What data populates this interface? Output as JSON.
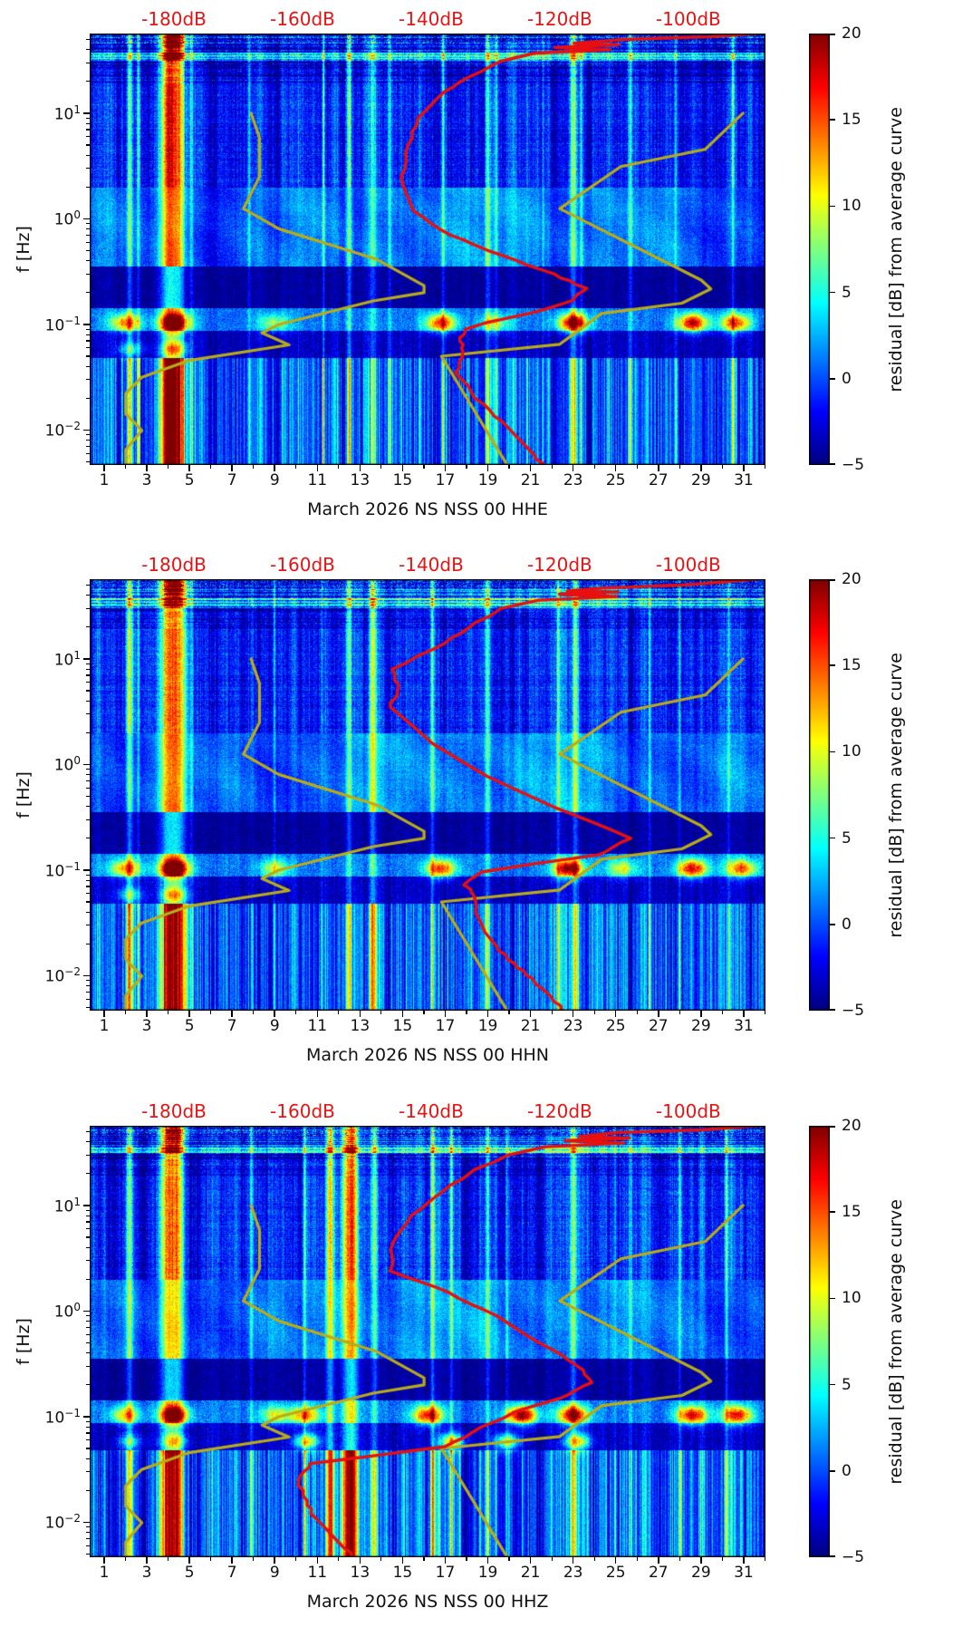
{
  "chart_data": {
    "type": "heatmap",
    "colormap": "jet",
    "value_range": [
      -5,
      20
    ],
    "x_axis": {
      "tick_labels": [
        "1",
        "3",
        "5",
        "7",
        "9",
        "11",
        "13",
        "15",
        "17",
        "19",
        "21",
        "23",
        "25",
        "27",
        "29",
        "31"
      ],
      "day_range": [
        0.32,
        32.05
      ]
    },
    "y_axis": {
      "label": "f [Hz]",
      "tick_exponents": [
        "1",
        "0",
        "−1",
        "−2"
      ],
      "freq_range_hz": [
        0.00465,
        56.9
      ]
    },
    "top_axis": {
      "labels": [
        "-180dB",
        "-160dB",
        "-140dB",
        "-120dB",
        "-100dB"
      ],
      "db_values": [
        -180,
        -160,
        -140,
        -120,
        -100
      ],
      "db_range": [
        -193.1,
        -88.0
      ],
      "color": "#e61414"
    },
    "colorbar": {
      "label": "residual [dB] from average curve",
      "tick_values": [
        20,
        15,
        10,
        5,
        0,
        -5
      ],
      "tick_labels": [
        "20",
        "15",
        "10",
        "5",
        "0",
        "−5"
      ],
      "vmin": -5,
      "vmax": 20
    },
    "noise_models": {
      "color": "#b9ac17",
      "nlnm_f_db": [
        [
          10,
          -168.0
        ],
        [
          5.88,
          -166.7
        ],
        [
          2.5,
          -166.7
        ],
        [
          1.25,
          -169.2
        ],
        [
          0.806,
          -163.7
        ],
        [
          0.417,
          -148.6
        ],
        [
          0.233,
          -141.1
        ],
        [
          0.2,
          -141.1
        ],
        [
          0.167,
          -149.0
        ],
        [
          0.1,
          -163.7
        ],
        [
          0.0833,
          -166.3
        ],
        [
          0.0641,
          -162.1
        ],
        [
          0.0457,
          -177.6
        ],
        [
          0.0316,
          -185.0
        ],
        [
          0.0222,
          -187.5
        ],
        [
          0.0143,
          -187.5
        ],
        [
          0.0099,
          -185.0
        ],
        [
          0.0065,
          -187.5
        ],
        [
          0.004,
          -187.5
        ]
      ],
      "nhnm_f_db": [
        [
          10,
          -91.5
        ],
        [
          4.55,
          -97.4
        ],
        [
          3.13,
          -110.5
        ],
        [
          1.25,
          -120.0
        ],
        [
          0.263,
          -98.0
        ],
        [
          0.217,
          -96.5
        ],
        [
          0.159,
          -101.0
        ],
        [
          0.127,
          -113.5
        ],
        [
          0.0649,
          -120.0
        ],
        [
          0.05,
          -138.4
        ],
        [
          0.004,
          -127.5
        ]
      ]
    },
    "mean_curve_color": "#e80f0f",
    "panels": [
      {
        "channel": "HHE",
        "xlabel": "March 2026 NS NSS 00 HHE",
        "seed": 7,
        "mean_psd_f_db": [
          [
            57,
            -89
          ],
          [
            53,
            -97
          ],
          [
            50,
            -110
          ],
          [
            46,
            -118
          ],
          [
            44.5,
            -111
          ],
          [
            42,
            -121
          ],
          [
            40,
            -112
          ],
          [
            37,
            -124
          ],
          [
            31,
            -129
          ],
          [
            24,
            -133
          ],
          [
            16,
            -138
          ],
          [
            9,
            -142
          ],
          [
            5,
            -143.5
          ],
          [
            2.5,
            -144.5
          ],
          [
            1.2,
            -143
          ],
          [
            0.7,
            -137
          ],
          [
            0.45,
            -129
          ],
          [
            0.3,
            -121
          ],
          [
            0.22,
            -116
          ],
          [
            0.17,
            -118
          ],
          [
            0.13,
            -124
          ],
          [
            0.105,
            -131
          ],
          [
            0.09,
            -134.5
          ],
          [
            0.075,
            -135.5
          ],
          [
            0.055,
            -135
          ],
          [
            0.035,
            -136
          ],
          [
            0.02,
            -133
          ],
          [
            0.012,
            -129
          ],
          [
            0.0057,
            -124
          ],
          [
            0.0046,
            -122.5
          ]
        ],
        "hot_columns": [
          [
            2.2,
            0.1,
            11
          ],
          [
            2.6,
            0.05,
            6
          ],
          [
            4.0,
            0.28,
            15
          ],
          [
            4.5,
            0.22,
            13
          ],
          [
            5.1,
            0.06,
            6
          ],
          [
            7.8,
            0.05,
            5
          ],
          [
            11.3,
            0.04,
            6
          ],
          [
            12.5,
            0.1,
            9
          ],
          [
            13.6,
            0.12,
            10
          ],
          [
            14.4,
            0.05,
            6
          ],
          [
            16.9,
            0.05,
            6
          ],
          [
            19.0,
            0.09,
            9
          ],
          [
            19.4,
            0.05,
            6
          ],
          [
            21.6,
            0.04,
            5
          ],
          [
            23.0,
            0.12,
            10
          ],
          [
            23.4,
            0.06,
            7
          ],
          [
            25.7,
            0.08,
            7
          ],
          [
            27.8,
            0.04,
            4
          ],
          [
            30.5,
            0.04,
            5
          ]
        ],
        "blobs": [
          [
            2.0,
            13
          ],
          [
            4.3,
            17
          ],
          [
            9.0,
            8
          ],
          [
            16.8,
            16
          ],
          [
            19.3,
            8
          ],
          [
            23.0,
            19
          ],
          [
            28.6,
            18
          ],
          [
            30.6,
            15
          ]
        ],
        "low_blobs": [
          [
            2.2,
            8
          ],
          [
            4.3,
            10
          ]
        ],
        "high_blobs": [
          [
            4.35,
            8
          ]
        ]
      },
      {
        "channel": "HHN",
        "xlabel": "March 2026 NS NSS 00 HHN",
        "seed": 23,
        "mean_psd_f_db": [
          [
            57,
            -89
          ],
          [
            50,
            -101
          ],
          [
            47,
            -113
          ],
          [
            44,
            -119
          ],
          [
            43,
            -111
          ],
          [
            41,
            -120
          ],
          [
            39,
            -111
          ],
          [
            36,
            -123
          ],
          [
            30,
            -129
          ],
          [
            22,
            -133
          ],
          [
            14,
            -138
          ],
          [
            8,
            -146
          ],
          [
            5,
            -145
          ],
          [
            3.5,
            -146.5
          ],
          [
            1.6,
            -140
          ],
          [
            0.77,
            -131
          ],
          [
            0.4,
            -121
          ],
          [
            0.2,
            -109
          ],
          [
            0.14,
            -114
          ],
          [
            0.115,
            -124
          ],
          [
            0.096,
            -132
          ],
          [
            0.083,
            -134
          ],
          [
            0.072,
            -134.7
          ],
          [
            0.059,
            -133.3
          ],
          [
            0.035,
            -132.8
          ],
          [
            0.019,
            -130
          ],
          [
            0.013,
            -127.2
          ],
          [
            0.0094,
            -124.4
          ],
          [
            0.0057,
            -120.7
          ],
          [
            0.0046,
            -119.3
          ]
        ],
        "hot_columns": [
          [
            2.2,
            0.1,
            10
          ],
          [
            2.6,
            0.05,
            6
          ],
          [
            4.0,
            0.28,
            15
          ],
          [
            4.5,
            0.22,
            13
          ],
          [
            5.1,
            0.06,
            6
          ],
          [
            9.0,
            0.04,
            5
          ],
          [
            12.5,
            0.1,
            9
          ],
          [
            13.6,
            0.12,
            10
          ],
          [
            16.4,
            0.07,
            8
          ],
          [
            19.0,
            0.09,
            8
          ],
          [
            22.3,
            0.06,
            8
          ],
          [
            23.1,
            0.1,
            9
          ],
          [
            26.6,
            0.05,
            6
          ],
          [
            28.0,
            0.04,
            4
          ],
          [
            30.3,
            0.05,
            6
          ]
        ],
        "blobs": [
          [
            2.0,
            12
          ],
          [
            4.3,
            18
          ],
          [
            9.0,
            9
          ],
          [
            16.8,
            15
          ],
          [
            22.8,
            19
          ],
          [
            25.3,
            9
          ],
          [
            28.6,
            17
          ],
          [
            30.9,
            14
          ]
        ],
        "low_blobs": [
          [
            2.2,
            8
          ],
          [
            4.3,
            10
          ]
        ],
        "high_blobs": [
          [
            4.35,
            8
          ]
        ]
      },
      {
        "channel": "HHZ",
        "xlabel": "March 2026 NS NSS 00 HHZ",
        "seed": 41,
        "mean_psd_f_db": [
          [
            57,
            -89
          ],
          [
            52,
            -98
          ],
          [
            49,
            -111
          ],
          [
            45,
            -117
          ],
          [
            43.5,
            -109
          ],
          [
            41,
            -119
          ],
          [
            39,
            -110
          ],
          [
            36,
            -122
          ],
          [
            30,
            -128
          ],
          [
            22,
            -133
          ],
          [
            14,
            -138
          ],
          [
            8,
            -143
          ],
          [
            4.5,
            -146
          ],
          [
            2.4,
            -146.2
          ],
          [
            1.5,
            -137.3
          ],
          [
            0.9,
            -130
          ],
          [
            0.5,
            -123
          ],
          [
            0.3,
            -117
          ],
          [
            0.21,
            -115
          ],
          [
            0.15,
            -120
          ],
          [
            0.11,
            -127
          ],
          [
            0.08,
            -132
          ],
          [
            0.052,
            -137.7
          ],
          [
            0.042,
            -150
          ],
          [
            0.036,
            -158.7
          ],
          [
            0.025,
            -160.8
          ],
          [
            0.016,
            -159.4
          ],
          [
            0.011,
            -158.2
          ],
          [
            0.0056,
            -153.2
          ],
          [
            0.0046,
            -152
          ]
        ],
        "hot_columns": [
          [
            2.2,
            0.1,
            10
          ],
          [
            4.0,
            0.25,
            14
          ],
          [
            4.5,
            0.2,
            12
          ],
          [
            7.9,
            0.05,
            6
          ],
          [
            10.4,
            0.06,
            7
          ],
          [
            11.6,
            0.15,
            11
          ],
          [
            12.6,
            0.3,
            16
          ],
          [
            13.7,
            0.1,
            9
          ],
          [
            16.4,
            0.06,
            8
          ],
          [
            17.3,
            0.05,
            7
          ],
          [
            19.0,
            0.08,
            8
          ],
          [
            19.9,
            0.05,
            7
          ],
          [
            23.0,
            0.12,
            10
          ],
          [
            25.7,
            0.06,
            6
          ],
          [
            28.0,
            0.04,
            5
          ],
          [
            30.2,
            0.05,
            8
          ]
        ],
        "blobs": [
          [
            2.0,
            11
          ],
          [
            4.3,
            16
          ],
          [
            9.0,
            9
          ],
          [
            10.4,
            13
          ],
          [
            16.2,
            16
          ],
          [
            20.6,
            20
          ],
          [
            23.0,
            18
          ],
          [
            28.6,
            17
          ],
          [
            30.7,
            16
          ]
        ],
        "low_blobs": [
          [
            2.2,
            8
          ],
          [
            4.3,
            9
          ],
          [
            10.5,
            14
          ],
          [
            17.3,
            15
          ],
          [
            19.9,
            13
          ],
          [
            23.2,
            14
          ]
        ],
        "high_blobs": [
          [
            4.35,
            8
          ]
        ]
      }
    ]
  }
}
